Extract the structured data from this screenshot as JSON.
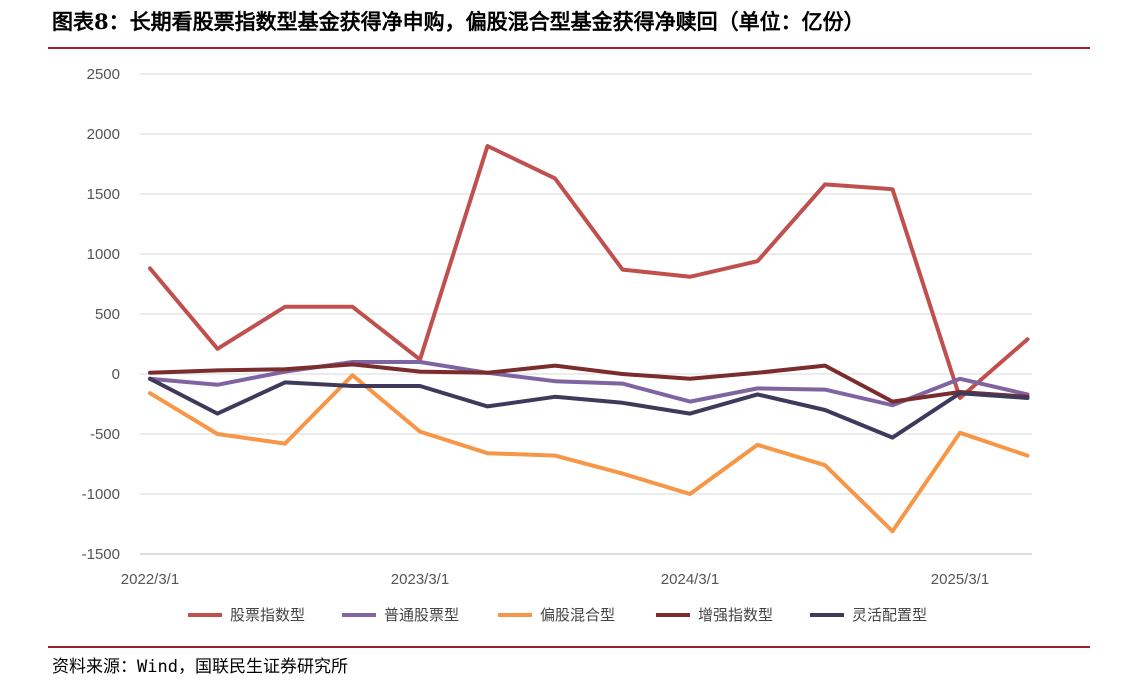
{
  "title": "图表8：长期看股票指数型基金获得净申购，偏股混合型基金获得净赎回（单位：亿份）",
  "source": "资料来源：Wind，国联民生证券研究所",
  "chart_data": {
    "type": "line",
    "title": "图表8：长期看股票指数型基金获得净申购，偏股混合型基金获得净赎回（单位：亿份）",
    "xlabel": "",
    "ylabel": "",
    "ylim": [
      -1500,
      2500
    ],
    "yticks": [
      2500,
      2000,
      1500,
      1000,
      500,
      0,
      -500,
      -1000,
      -1500
    ],
    "x": [
      "2022/3/1",
      "2022/6/1",
      "2022/9/1",
      "2022/12/1",
      "2023/3/1",
      "2023/6/1",
      "2023/9/1",
      "2023/12/1",
      "2024/3/1",
      "2024/6/1",
      "2024/9/1",
      "2024/12/1",
      "2025/3/1",
      "2025/6/1"
    ],
    "xtick_labels": [
      "2022/3/1",
      "2023/3/1",
      "2024/3/1",
      "2025/3/1"
    ],
    "grid": true,
    "legend": "bottom",
    "series": [
      {
        "name": "股票指数型",
        "color": "#c0504d",
        "values": [
          880,
          210,
          560,
          560,
          120,
          1900,
          1630,
          870,
          810,
          940,
          1580,
          1540,
          -200,
          290
        ]
      },
      {
        "name": "普通股票型",
        "color": "#8064a2",
        "values": [
          -40,
          -90,
          20,
          100,
          100,
          10,
          -60,
          -80,
          -230,
          -120,
          -130,
          -260,
          -40,
          -170
        ]
      },
      {
        "name": "偏股混合型",
        "color": "#f79646",
        "values": [
          -160,
          -500,
          -580,
          -10,
          -480,
          -660,
          -680,
          -830,
          -1000,
          -590,
          -760,
          -1310,
          -490,
          -680
        ]
      },
      {
        "name": "增强指数型",
        "color": "#7b2c2c",
        "values": [
          10,
          30,
          40,
          80,
          20,
          10,
          70,
          0,
          -40,
          10,
          70,
          -230,
          -150,
          -190
        ]
      },
      {
        "name": "灵活配置型",
        "color": "#3f3a5c",
        "values": [
          -40,
          -330,
          -70,
          -100,
          -100,
          -270,
          -190,
          -240,
          -330,
          -170,
          -300,
          -530,
          -160,
          -200
        ]
      }
    ]
  }
}
